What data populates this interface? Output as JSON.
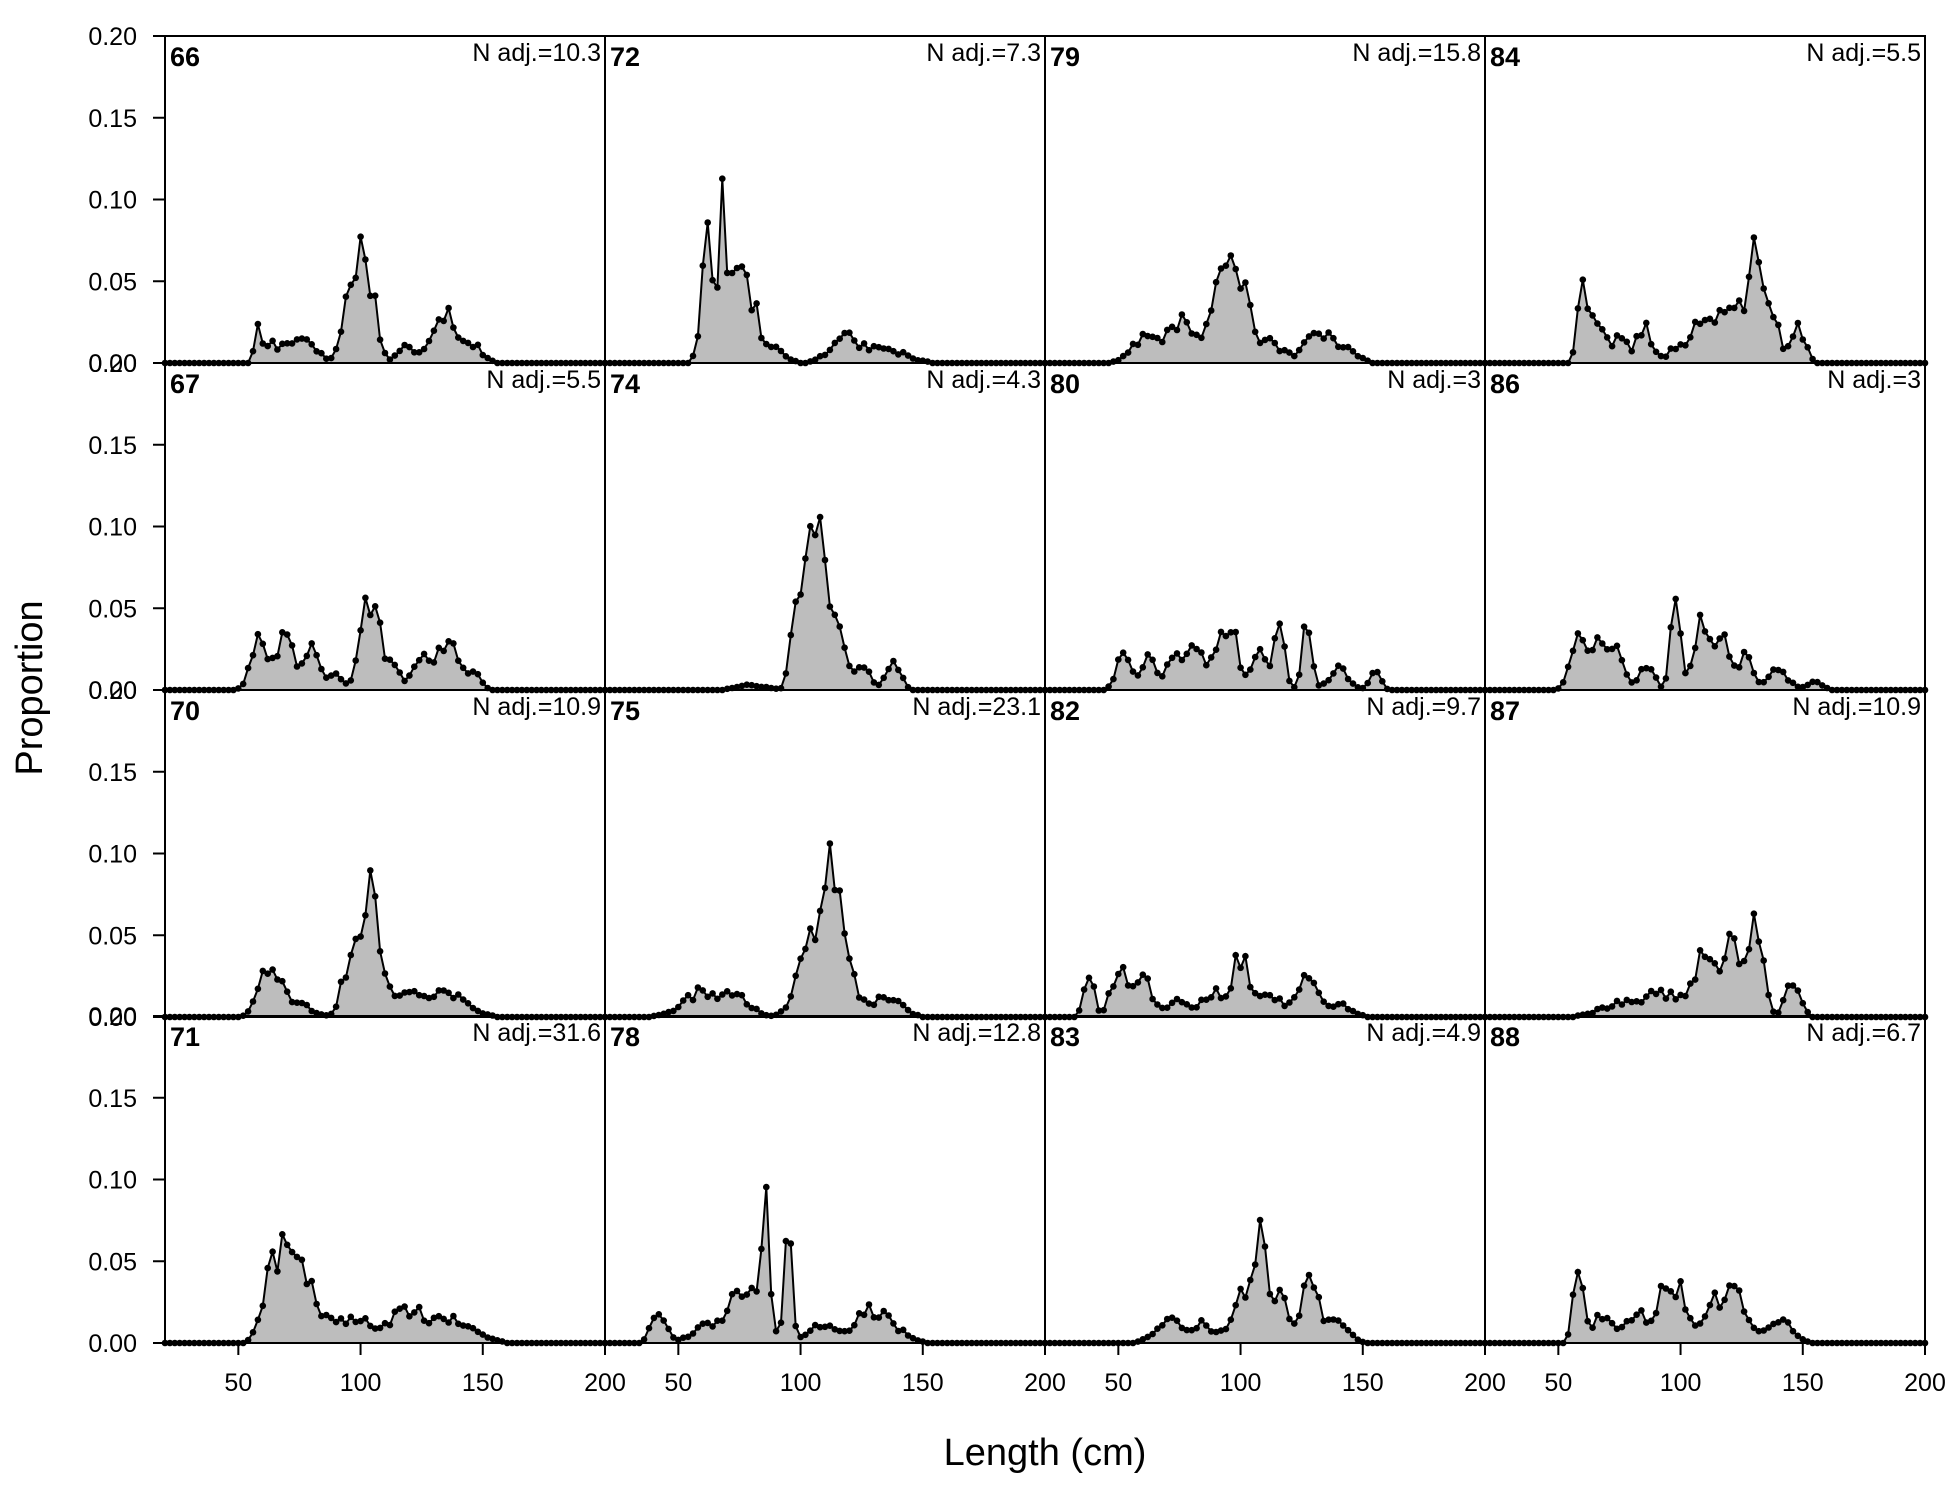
{
  "chart_data": {
    "type": "area",
    "layout": "4x4 panel grid (columns of years)",
    "xlabel": "Length (cm)",
    "ylabel": "Proportion",
    "xlim": [
      20,
      200
    ],
    "ylim": [
      0,
      0.2
    ],
    "x_ticks": [
      50,
      100,
      150,
      200
    ],
    "y_ticks": [
      "0.00",
      "0.05",
      "0.10",
      "0.15",
      "0.20"
    ],
    "fill_color": "#bdbdbd",
    "line_color": "#000000",
    "panels": [
      {
        "label": "66",
        "n_label": "N adj.=10.3",
        "peaks": [
          [
            58,
            0.02,
            1.5
          ],
          [
            63,
            0.012,
            2
          ],
          [
            70,
            0.012,
            3
          ],
          [
            78,
            0.015,
            4
          ],
          [
            98,
            0.06,
            4
          ],
          [
            104,
            0.035,
            3
          ],
          [
            118,
            0.01,
            3
          ],
          [
            134,
            0.033,
            5
          ],
          [
            146,
            0.01,
            4
          ]
        ]
      },
      {
        "label": "67",
        "n_label": "N adj.=5.5",
        "peaks": [
          [
            58,
            0.034,
            3
          ],
          [
            69,
            0.035,
            4
          ],
          [
            80,
            0.022,
            3
          ],
          [
            89,
            0.01,
            3
          ],
          [
            104,
            0.052,
            4
          ],
          [
            113,
            0.012,
            3
          ],
          [
            125,
            0.015,
            4
          ],
          [
            136,
            0.025,
            5
          ],
          [
            146,
            0.008,
            3
          ]
        ]
      },
      {
        "label": "70",
        "n_label": "N adj.=10.9",
        "peaks": [
          [
            63,
            0.035,
            4
          ],
          [
            75,
            0.008,
            5
          ],
          [
            104,
            0.078,
            4
          ],
          [
            95,
            0.03,
            3
          ],
          [
            118,
            0.012,
            5
          ],
          [
            135,
            0.015,
            8
          ]
        ]
      },
      {
        "label": "71",
        "n_label": "N adj.=31.6",
        "peaks": [
          [
            64,
            0.04,
            4
          ],
          [
            73,
            0.05,
            5
          ],
          [
            85,
            0.015,
            8
          ],
          [
            100,
            0.01,
            5
          ],
          [
            120,
            0.02,
            8
          ],
          [
            140,
            0.012,
            8
          ]
        ]
      },
      {
        "label": "72",
        "n_label": "N adj.=7.3",
        "peaks": [
          [
            62,
            0.07,
            2.5
          ],
          [
            68,
            0.1,
            1.5
          ],
          [
            74,
            0.06,
            2.5
          ],
          [
            80,
            0.035,
            3
          ],
          [
            90,
            0.008,
            4
          ],
          [
            118,
            0.015,
            6
          ],
          [
            135,
            0.008,
            8
          ]
        ]
      },
      {
        "label": "74",
        "n_label": "N adj.=4.3",
        "peaks": [
          [
            98,
            0.06,
            2
          ],
          [
            103,
            0.095,
            2
          ],
          [
            108,
            0.1,
            2
          ],
          [
            114,
            0.05,
            3
          ],
          [
            124,
            0.015,
            4
          ],
          [
            138,
            0.015,
            3
          ],
          [
            80,
            0.003,
            6
          ]
        ]
      },
      {
        "label": "75",
        "n_label": "N adj.=23.1",
        "peaks": [
          [
            60,
            0.015,
            8
          ],
          [
            75,
            0.01,
            5
          ],
          [
            103,
            0.035,
            5
          ],
          [
            112,
            0.08,
            4
          ],
          [
            120,
            0.02,
            4
          ],
          [
            135,
            0.012,
            6
          ]
        ]
      },
      {
        "label": "78",
        "n_label": "N adj.=12.8",
        "peaks": [
          [
            42,
            0.018,
            3
          ],
          [
            60,
            0.01,
            5
          ],
          [
            72,
            0.025,
            4
          ],
          [
            82,
            0.03,
            4
          ],
          [
            86,
            0.07,
            1.5
          ],
          [
            95,
            0.065,
            1.5
          ],
          [
            108,
            0.01,
            5
          ],
          [
            130,
            0.02,
            8
          ]
        ]
      },
      {
        "label": "79",
        "n_label": "N adj.=15.8",
        "peaks": [
          [
            60,
            0.015,
            5
          ],
          [
            75,
            0.025,
            6
          ],
          [
            93,
            0.045,
            5
          ],
          [
            100,
            0.035,
            4
          ],
          [
            112,
            0.012,
            5
          ],
          [
            133,
            0.02,
            6
          ],
          [
            145,
            0.006,
            4
          ]
        ]
      },
      {
        "label": "80",
        "n_label": "N adj.=3",
        "peaks": [
          [
            52,
            0.02,
            3
          ],
          [
            62,
            0.018,
            3
          ],
          [
            72,
            0.02,
            3
          ],
          [
            82,
            0.025,
            4
          ],
          [
            95,
            0.038,
            4
          ],
          [
            108,
            0.02,
            3
          ],
          [
            116,
            0.04,
            2
          ],
          [
            127,
            0.038,
            2
          ],
          [
            140,
            0.012,
            4
          ],
          [
            155,
            0.015,
            2
          ]
        ]
      },
      {
        "label": "82",
        "n_label": "N adj.=9.7",
        "peaks": [
          [
            38,
            0.025,
            2
          ],
          [
            50,
            0.028,
            3
          ],
          [
            60,
            0.022,
            4
          ],
          [
            75,
            0.012,
            4
          ],
          [
            88,
            0.015,
            4
          ],
          [
            100,
            0.035,
            4
          ],
          [
            112,
            0.015,
            4
          ],
          [
            127,
            0.025,
            4
          ],
          [
            140,
            0.008,
            5
          ]
        ]
      },
      {
        "label": "83",
        "n_label": "N adj.=4.9",
        "peaks": [
          [
            70,
            0.015,
            5
          ],
          [
            85,
            0.012,
            4
          ],
          [
            100,
            0.03,
            4
          ],
          [
            108,
            0.058,
            3
          ],
          [
            116,
            0.03,
            3
          ],
          [
            128,
            0.035,
            4
          ],
          [
            140,
            0.015,
            4
          ]
        ]
      },
      {
        "label": "84",
        "n_label": "N adj.=5.5",
        "peaks": [
          [
            60,
            0.045,
            2
          ],
          [
            66,
            0.025,
            3
          ],
          [
            75,
            0.015,
            3
          ],
          [
            85,
            0.022,
            3
          ],
          [
            99,
            0.01,
            4
          ],
          [
            110,
            0.03,
            4
          ],
          [
            120,
            0.04,
            4
          ],
          [
            130,
            0.058,
            3
          ],
          [
            137,
            0.03,
            3
          ],
          [
            148,
            0.02,
            3
          ]
        ]
      },
      {
        "label": "86",
        "n_label": "N adj.=3",
        "peaks": [
          [
            58,
            0.035,
            3
          ],
          [
            66,
            0.03,
            3
          ],
          [
            74,
            0.025,
            3
          ],
          [
            86,
            0.015,
            3
          ],
          [
            98,
            0.055,
            2
          ],
          [
            108,
            0.038,
            3
          ],
          [
            116,
            0.035,
            3
          ],
          [
            126,
            0.02,
            3
          ],
          [
            140,
            0.012,
            4
          ],
          [
            155,
            0.005,
            3
          ]
        ]
      },
      {
        "label": "87",
        "n_label": "N adj.=10.9",
        "peaks": [
          [
            75,
            0.008,
            8
          ],
          [
            92,
            0.015,
            6
          ],
          [
            110,
            0.04,
            5
          ],
          [
            122,
            0.04,
            4
          ],
          [
            131,
            0.05,
            3
          ],
          [
            146,
            0.02,
            3
          ]
        ]
      },
      {
        "label": "88",
        "n_label": "N adj.=6.7",
        "peaks": [
          [
            58,
            0.045,
            2
          ],
          [
            68,
            0.018,
            4
          ],
          [
            82,
            0.018,
            4
          ],
          [
            93,
            0.032,
            3
          ],
          [
            100,
            0.03,
            3
          ],
          [
            112,
            0.02,
            4
          ],
          [
            122,
            0.028,
            5
          ],
          [
            140,
            0.015,
            5
          ]
        ]
      }
    ]
  }
}
